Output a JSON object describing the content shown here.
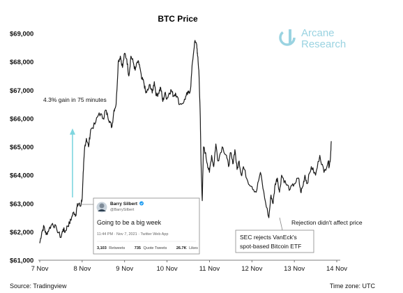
{
  "chart_data": {
    "type": "line",
    "title": "BTC Price",
    "xlabel": "",
    "ylabel": "",
    "x_ticks": [
      "7 Nov",
      "8 Nov",
      "9 Nov",
      "10 Nov",
      "11 Nov",
      "12 Nov",
      "13 Nov",
      "14 Nov"
    ],
    "y_ticks": [
      "$61,000",
      "$62,000",
      "$63,000",
      "$64,000",
      "$65,000",
      "$66,000",
      "$67,000",
      "$68,000",
      "$69,000"
    ],
    "ylim": [
      61000,
      69000
    ],
    "xlim": [
      0,
      7
    ],
    "grid": false,
    "series": [
      {
        "name": "",
        "color": "#1a1a1a",
        "x": [
          0.0,
          0.05,
          0.1,
          0.15,
          0.22,
          0.3,
          0.4,
          0.5,
          0.55,
          0.6,
          0.65,
          0.7,
          0.75,
          0.8,
          0.85,
          0.88,
          0.92,
          0.96,
          1.0,
          1.03,
          1.06,
          1.1,
          1.15,
          1.2,
          1.3,
          1.4,
          1.5,
          1.55,
          1.6,
          1.65,
          1.7,
          1.75,
          1.8,
          1.85,
          1.9,
          1.95,
          2.0,
          2.05,
          2.1,
          2.15,
          2.2,
          2.25,
          2.3,
          2.35,
          2.4,
          2.45,
          2.5,
          2.55,
          2.6,
          2.65,
          2.7,
          2.75,
          2.8,
          2.85,
          2.9,
          2.95,
          3.0,
          3.05,
          3.1,
          3.15,
          3.2,
          3.3,
          3.4,
          3.45,
          3.5,
          3.55,
          3.6,
          3.65,
          3.7,
          3.72,
          3.75,
          3.78,
          3.8,
          3.83,
          3.86,
          3.9,
          3.95,
          4.0,
          4.05,
          4.1,
          4.15,
          4.2,
          4.3,
          4.4,
          4.45,
          4.5,
          4.55,
          4.6,
          4.65,
          4.7,
          4.75,
          4.8,
          4.9,
          5.0,
          5.1,
          5.2,
          5.3,
          5.4,
          5.45,
          5.5,
          5.55,
          5.6,
          5.65,
          5.7,
          5.8,
          5.9,
          6.0,
          6.1,
          6.15,
          6.2,
          6.25,
          6.3,
          6.4,
          6.5,
          6.6,
          6.7,
          6.8,
          6.82,
          6.85,
          6.87
        ],
        "values": [
          61600,
          62000,
          62200,
          61900,
          62100,
          62300,
          62100,
          61800,
          62100,
          62000,
          62200,
          62300,
          62500,
          62700,
          62600,
          62900,
          63000,
          62900,
          63200,
          64200,
          65000,
          65300,
          65000,
          65600,
          65800,
          66200,
          66000,
          66300,
          66100,
          65900,
          65700,
          66300,
          66500,
          68000,
          68200,
          67800,
          68300,
          68100,
          67500,
          68200,
          68000,
          67700,
          68000,
          67900,
          67400,
          67300,
          66900,
          67000,
          67200,
          66900,
          67300,
          66800,
          66900,
          67100,
          66600,
          66900,
          66700,
          66900,
          67000,
          66800,
          66900,
          66500,
          66600,
          66800,
          66900,
          67000,
          68000,
          68700,
          68600,
          68200,
          67700,
          66300,
          64500,
          63100,
          65000,
          64800,
          64400,
          64100,
          64700,
          64300,
          65100,
          64500,
          65000,
          64700,
          64300,
          64800,
          64400,
          64900,
          64200,
          64500,
          64000,
          64300,
          63800,
          63600,
          63400,
          64100,
          63200,
          62500,
          63300,
          63000,
          63700,
          63900,
          63400,
          64000,
          63700,
          63500,
          63700,
          63900,
          63400,
          63600,
          64000,
          63700,
          64300,
          64000,
          64700,
          64100,
          64500,
          64300,
          64600,
          65200
        ]
      }
    ],
    "annotations": [
      "4.3% gain in 75 minutes",
      "Rejection didn't affect price",
      "SEC rejects VanEck's",
      "spot-based Bitcoin ETF"
    ]
  },
  "logo": {
    "line1": "Arcane",
    "line2": "Research",
    "color": "#9ad3e1"
  },
  "tweet": {
    "name": "Barry Silbert",
    "handle": "@BarrySilbert",
    "text": "Going to be a big week",
    "meta": "11:44 PM · Nov 7, 2021 · Twitter Web App",
    "retweets_count": "3,103",
    "retweets_label": "Retweets",
    "quotes_count": "735",
    "quotes_label": "Quote Tweets",
    "likes_count": "26.7K",
    "likes_label": "Likes",
    "verified_color": "#1d9bf0"
  },
  "footer": {
    "source": "Source: Tradingview",
    "timezone": "Time zone: UTC"
  },
  "arrow_color": "#7fd6df"
}
